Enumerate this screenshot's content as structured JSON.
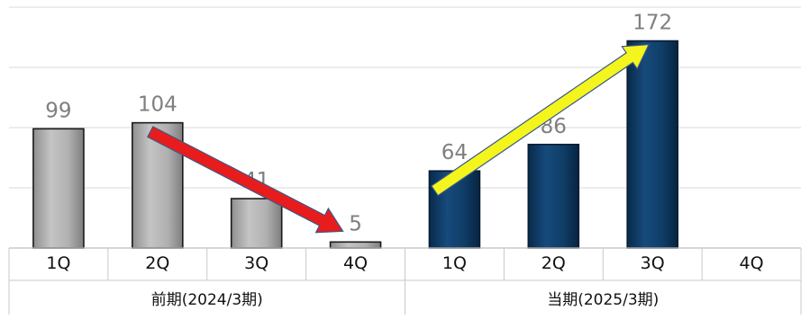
{
  "chart_data": {
    "type": "bar",
    "categories": [
      "1Q",
      "2Q",
      "3Q",
      "4Q",
      "1Q",
      "2Q",
      "3Q",
      "4Q"
    ],
    "groups": [
      {
        "label": "前期(2024/3期)",
        "categories": [
          "1Q",
          "2Q",
          "3Q",
          "4Q"
        ]
      },
      {
        "label": "当期(2025/3期)",
        "categories": [
          "1Q",
          "2Q",
          "3Q",
          "4Q"
        ]
      }
    ],
    "series": [
      {
        "values": [
          99,
          104,
          41,
          5,
          null,
          null,
          null,
          null
        ]
      },
      {
        "values": [
          null,
          null,
          null,
          null,
          64,
          86,
          172,
          null
        ]
      }
    ],
    "data_labels": [
      "99",
      "104",
      "41",
      "5",
      "64",
      "86",
      "172",
      ""
    ],
    "ylim": [
      0,
      200
    ],
    "grid": true,
    "legend": "none",
    "colors": {
      "previous_period": "#b5b5b5",
      "current_period": "#0f3d66",
      "decline_arrow": "#e81c1c",
      "growth_arrow": "#f5f51e",
      "data_label_text": "#7f7f7f",
      "grid": "#d9d9d9"
    },
    "annotations": [
      {
        "type": "arrow",
        "from_category_index": 1,
        "to_category_index": 3,
        "direction": "down",
        "color": "#e81c1c"
      },
      {
        "type": "arrow",
        "from_category_index": 4,
        "to_category_index": 6,
        "direction": "up",
        "color": "#f5f51e"
      }
    ]
  }
}
